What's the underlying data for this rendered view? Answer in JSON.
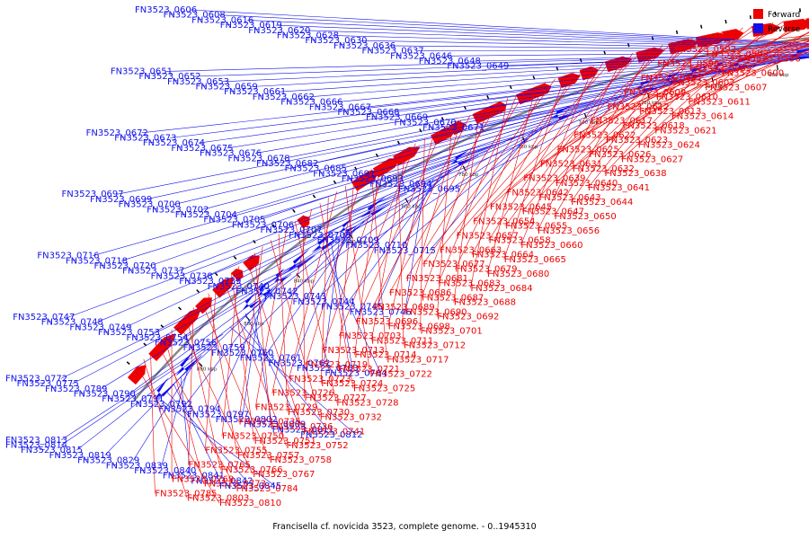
{
  "caption": "Francisella cf. novicida 3523, complete genome. - 0..1945310",
  "legend": [
    {
      "label": "Forward",
      "color": "#ee0000"
    },
    {
      "label": "Reverse",
      "color": "#1010ee"
    }
  ],
  "colors": {
    "forward": "#ee0000",
    "reverse": "#1010ee",
    "backbone": "#888888",
    "tick_marker": "#000000"
  },
  "ticks": [
    "620 kbp",
    "640 kbp",
    "660 kbp",
    "680 kbp",
    "700 kbp",
    "720 kbp",
    "740 kbp",
    "760 kbp",
    "780 kbp",
    "800 kbp",
    "820 kbp",
    "840 kbp",
    "860 kbp",
    "880 kbp"
  ],
  "genes_reverse": [
    "FN3523_0606",
    "FN3523_0608",
    "FN3523_0616",
    "FN3523_0619",
    "FN3523_0620",
    "FN3523_0628",
    "FN3523_0630",
    "FN3523_0636",
    "FN3523_0637",
    "FN3523_0646",
    "FN3523_0648",
    "FN3523_0649",
    "FN3523_0651",
    "FN3523_0652",
    "FN3523_0653",
    "FN3523_0659",
    "FN3523_0661",
    "FN3523_0662",
    "FN3523_0666",
    "FN3523_0667",
    "FN3523_0668",
    "FN3523_0669",
    "FN3523_0670",
    "FN3523_0671",
    "FN3523_0672",
    "FN3523_0673",
    "FN3523_0674",
    "FN3523_0675",
    "FN3523_0676",
    "FN3523_0678",
    "FN3523_0682",
    "FN3523_0685",
    "FN3523_0691",
    "FN3523_0693",
    "FN3523_0694",
    "FN3523_0695",
    "FN3523_0697",
    "FN3523_0699",
    "FN3523_0700",
    "FN3523_0702",
    "FN3523_0704",
    "FN3523_0705",
    "FN3523_0706",
    "FN3523_0707",
    "FN3523_0708",
    "FN3523_0709",
    "FN3523_0710",
    "FN3523_0715",
    "FN3523_0716",
    "FN3523_0718",
    "FN3523_0720",
    "FN3523_0737",
    "FN3523_0738",
    "FN3523_0739",
    "FN3523_0740",
    "FN3523_0742",
    "FN3523_0743",
    "FN3523_0744",
    "FN3523_0745",
    "FN3523_0746",
    "FN3523_0747",
    "FN3523_0748",
    "FN3523_0749",
    "FN3523_0753",
    "FN3523_0754",
    "FN3523_0756",
    "FN3523_0759",
    "FN3523_0760",
    "FN3523_0761",
    "FN3523_0762",
    "FN3523_0763",
    "FN3523_0764",
    "FN3523_0772",
    "FN3523_0775",
    "FN3523_0789",
    "FN3523_0790",
    "FN3523_0791",
    "FN3523_0792",
    "FN3523_0794",
    "FN3523_0797",
    "FN3523_0802",
    "FN3523_0809",
    "FN3523_0811",
    "FN3523_0812",
    "FN3523_0813",
    "FN3523_0814",
    "FN3523_0815",
    "FN3523_0819",
    "FN3523_0829",
    "FN3523_0839",
    "FN3523_0840",
    "FN3523_0841",
    "FN3523_0842",
    "FN3523_0845"
  ],
  "genes_forward": [
    "FN3523_0592",
    "FN3523_0593",
    "FN3523_0596",
    "FN3523_0598",
    "FN3523_0599",
    "FN3523_0600",
    "FN3523_0601",
    "FN3523_0602",
    "FN3523_0607",
    "FN3523_0609",
    "FN3523_0610",
    "FN3523_0611",
    "FN3523_0612",
    "FN3523_0613",
    "FN3523_0614",
    "FN3523_0617",
    "FN3523_0618",
    "FN3523_0621",
    "FN3523_0622",
    "FN3523_0623",
    "FN3523_0624",
    "FN3523_0625",
    "FN3523_0626",
    "FN3523_0627",
    "FN3523_0631",
    "FN3523_0632",
    "FN3523_0638",
    "FN3523_0639",
    "FN3523_0640",
    "FN3523_0641",
    "FN3523_0642",
    "FN3523_0643",
    "FN3523_0644",
    "FN3523_0645",
    "FN3523_0647",
    "FN3523_0650",
    "FN3523_0654",
    "FN3523_0655",
    "FN3523_0656",
    "FN3523_0657",
    "FN3523_0658",
    "FN3523_0660",
    "FN3523_0663",
    "FN3523_0664",
    "FN3523_0665",
    "FN3523_0677",
    "FN3523_0679",
    "FN3523_0680",
    "FN3523_0681",
    "FN3523_0683",
    "FN3523_0684",
    "FN3523_0686",
    "FN3523_0687",
    "FN3523_0688",
    "FN3523_0689",
    "FN3523_0690",
    "FN3523_0692",
    "FN3523_0696",
    "FN3523_0698",
    "FN3523_0701",
    "FN3523_0703",
    "FN3523_0711",
    "FN3523_0712",
    "FN3523_0713",
    "FN3523_0714",
    "FN3523_0717",
    "FN3523_0719",
    "FN3523_0721",
    "FN3523_0722",
    "FN3523_0723",
    "FN3523_0724",
    "FN3523_0725",
    "FN3523_0726",
    "FN3523_0727",
    "FN3523_0728",
    "FN3523_0729",
    "FN3523_0730",
    "FN3523_0732",
    "FN3523_0735",
    "FN3523_0736",
    "FN3523_0741",
    "FN3523_0750",
    "FN3523_0751",
    "FN3523_0752",
    "FN3523_0755",
    "FN3523_0757",
    "FN3523_0758",
    "FN3523_0765",
    "FN3523_0766",
    "FN3523_0767",
    "FN3523_0769",
    "FN3523_0773",
    "FN3523_0784",
    "FN3523_0785",
    "FN3523_0803",
    "FN3523_0810"
  ]
}
